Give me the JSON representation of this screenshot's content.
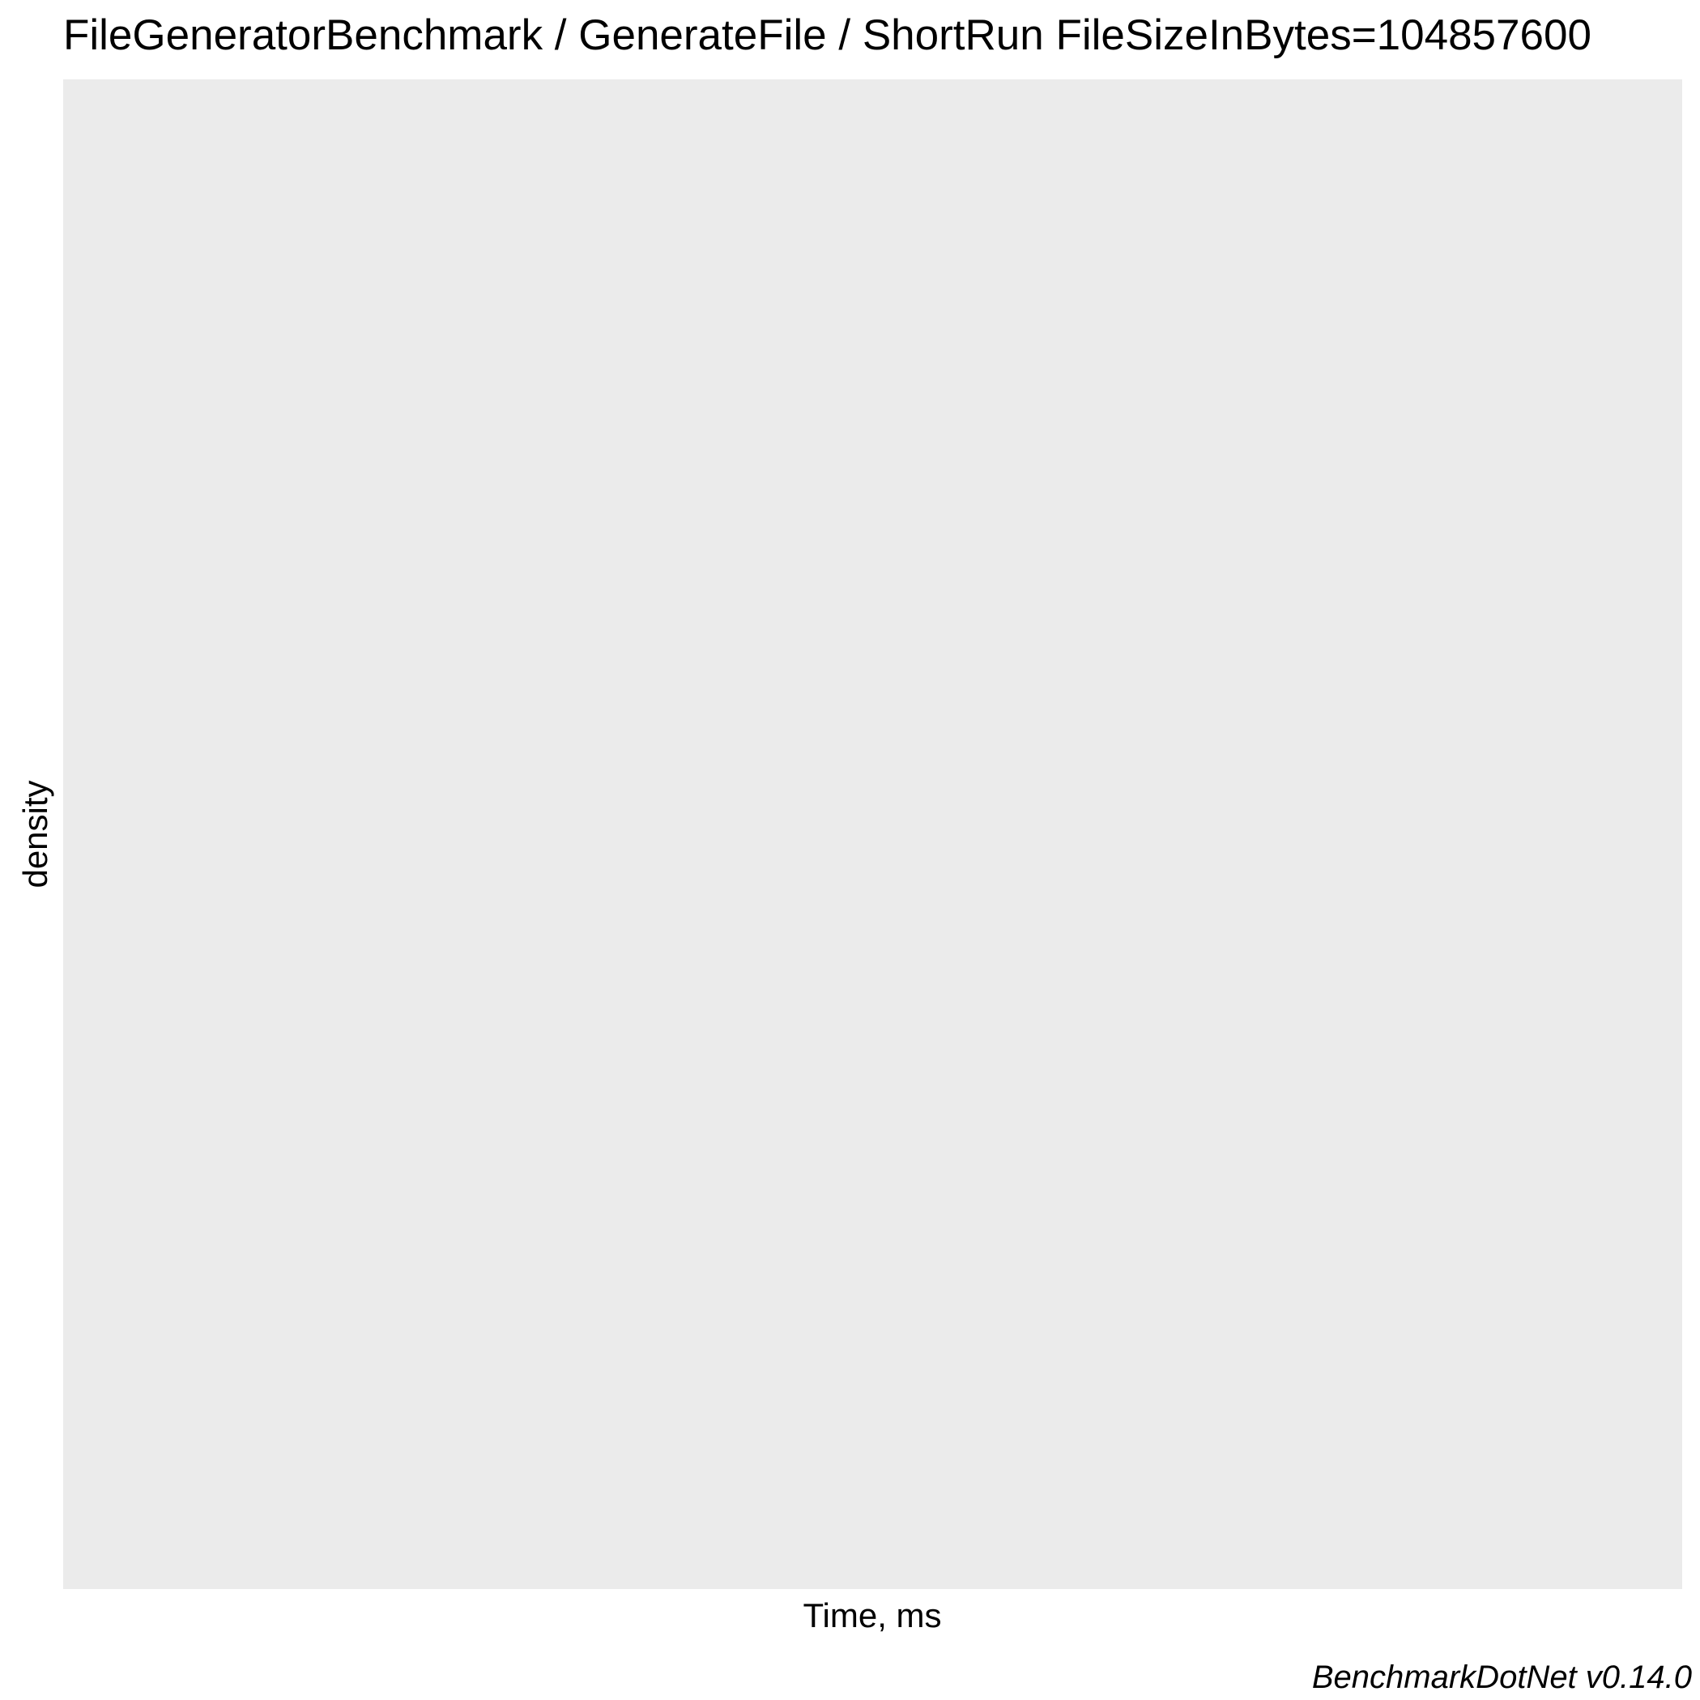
{
  "colors": {
    "panel_background": "#ebebeb",
    "page_background": "#ffffff",
    "text": "#000000"
  },
  "chart_data": {
    "type": "area",
    "title": "FileGeneratorBenchmark / GenerateFile / ShortRun FileSizeInBytes=104857600",
    "xlabel": "Time, ms",
    "ylabel": "density",
    "caption": "BenchmarkDotNet v0.14.0",
    "series": [],
    "grid": false,
    "legend": "none"
  }
}
